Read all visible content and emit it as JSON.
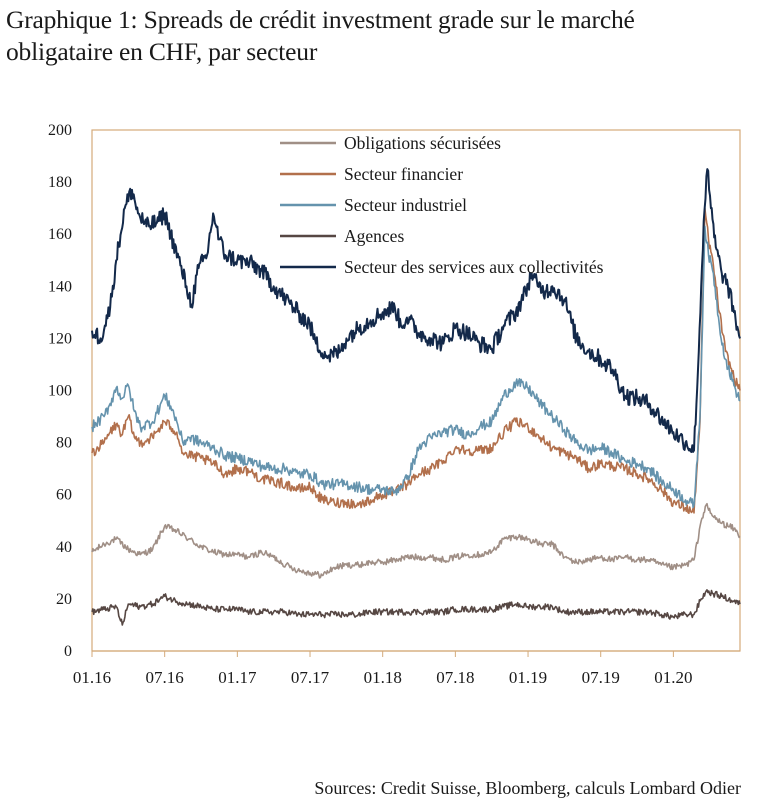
{
  "title": {
    "line1": "Graphique 1: Spreads de crédit investment grade sur le marché",
    "line2": "obligataire en CHF, par secteur"
  },
  "source": "Sources: Credit Suisse, Bloomberg, calculs Lombard Odier",
  "chart_data": {
    "type": "line",
    "title": "Graphique 1: Spreads de crédit investment grade sur le marché obligataire en CHF, par secteur",
    "xlabel": "",
    "ylabel": "",
    "ylim": [
      0,
      200
    ],
    "yticks": [
      0,
      20,
      40,
      60,
      80,
      100,
      120,
      140,
      160,
      180,
      200
    ],
    "xlim": [
      0,
      53.5
    ],
    "x_unit": "months since 01.16",
    "xticks": [
      {
        "x": 0,
        "label": "01.16"
      },
      {
        "x": 6,
        "label": "07.16"
      },
      {
        "x": 12,
        "label": "01.17"
      },
      {
        "x": 18,
        "label": "07.17"
      },
      {
        "x": 24,
        "label": "01.18"
      },
      {
        "x": 30,
        "label": "07.18"
      },
      {
        "x": 36,
        "label": "01.19"
      },
      {
        "x": 42,
        "label": "07.19"
      },
      {
        "x": 48,
        "label": "01.20"
      }
    ],
    "grid": false,
    "legend_position": "top",
    "series": [
      {
        "name": "Obligations sécurisées",
        "color": "#a08f86",
        "points": [
          [
            0,
            38
          ],
          [
            1,
            41
          ],
          [
            2,
            43
          ],
          [
            3,
            39
          ],
          [
            4,
            37
          ],
          [
            5,
            39
          ],
          [
            6,
            48
          ],
          [
            7,
            46
          ],
          [
            8,
            43
          ],
          [
            9,
            40
          ],
          [
            10,
            38
          ],
          [
            11,
            37
          ],
          [
            12,
            37
          ],
          [
            13,
            36
          ],
          [
            14,
            38
          ],
          [
            15,
            36
          ],
          [
            16,
            33
          ],
          [
            17,
            31
          ],
          [
            18,
            30
          ],
          [
            19,
            29
          ],
          [
            20,
            32
          ],
          [
            21,
            33
          ],
          [
            22,
            33
          ],
          [
            23,
            34
          ],
          [
            24,
            34
          ],
          [
            25,
            35
          ],
          [
            26,
            36
          ],
          [
            27,
            36
          ],
          [
            28,
            36
          ],
          [
            29,
            35
          ],
          [
            30,
            36
          ],
          [
            31,
            37
          ],
          [
            32,
            37
          ],
          [
            33,
            38
          ],
          [
            34,
            43
          ],
          [
            35,
            44
          ],
          [
            36,
            43
          ],
          [
            37,
            41
          ],
          [
            38,
            41
          ],
          [
            39,
            36
          ],
          [
            40,
            34
          ],
          [
            41,
            35
          ],
          [
            42,
            36
          ],
          [
            43,
            35
          ],
          [
            44,
            36
          ],
          [
            45,
            35
          ],
          [
            46,
            35
          ],
          [
            47,
            33
          ],
          [
            48,
            32
          ],
          [
            49,
            33
          ],
          [
            49.7,
            35
          ],
          [
            50.3,
            50
          ],
          [
            50.7,
            56
          ],
          [
            51.2,
            52
          ],
          [
            52,
            49
          ],
          [
            53,
            47
          ],
          [
            53.5,
            44
          ]
        ]
      },
      {
        "name": "Secteur financier",
        "color": "#b2704c",
        "points": [
          [
            0,
            76
          ],
          [
            1,
            80
          ],
          [
            1.5,
            84
          ],
          [
            2,
            87
          ],
          [
            2.5,
            83
          ],
          [
            3,
            90
          ],
          [
            3.5,
            82
          ],
          [
            4,
            80
          ],
          [
            5,
            82
          ],
          [
            6,
            88
          ],
          [
            6.5,
            86
          ],
          [
            7,
            84
          ],
          [
            7.5,
            76
          ],
          [
            8,
            75
          ],
          [
            9,
            74
          ],
          [
            10,
            72
          ],
          [
            11,
            68
          ],
          [
            12,
            70
          ],
          [
            13,
            69
          ],
          [
            14,
            66
          ],
          [
            15,
            65
          ],
          [
            16,
            64
          ],
          [
            17,
            62
          ],
          [
            18,
            63
          ],
          [
            19,
            58
          ],
          [
            20,
            57
          ],
          [
            21,
            57
          ],
          [
            22,
            56
          ],
          [
            23,
            58
          ],
          [
            24,
            60
          ],
          [
            25,
            61
          ],
          [
            26,
            64
          ],
          [
            27,
            68
          ],
          [
            28,
            70
          ],
          [
            29,
            73
          ],
          [
            30,
            78
          ],
          [
            31,
            77
          ],
          [
            32,
            77
          ],
          [
            33,
            78
          ],
          [
            34,
            84
          ],
          [
            35,
            88
          ],
          [
            36,
            86
          ],
          [
            37,
            82
          ],
          [
            38,
            78
          ],
          [
            39,
            76
          ],
          [
            40,
            74
          ],
          [
            41,
            70
          ],
          [
            42,
            72
          ],
          [
            43,
            71
          ],
          [
            44,
            70
          ],
          [
            45,
            68
          ],
          [
            46,
            66
          ],
          [
            47,
            62
          ],
          [
            48,
            57
          ],
          [
            49,
            55
          ],
          [
            49.7,
            53
          ],
          [
            50.2,
            88
          ],
          [
            50.6,
            170
          ],
          [
            50.9,
            158
          ],
          [
            51.3,
            148
          ],
          [
            51.8,
            130
          ],
          [
            52.3,
            115
          ],
          [
            53,
            105
          ],
          [
            53.5,
            100
          ]
        ]
      },
      {
        "name": "Secteur industriel",
        "color": "#6593ad",
        "points": [
          [
            0,
            86
          ],
          [
            1,
            90
          ],
          [
            1.5,
            95
          ],
          [
            2,
            101
          ],
          [
            2.5,
            97
          ],
          [
            3,
            102
          ],
          [
            3.5,
            92
          ],
          [
            4,
            86
          ],
          [
            5,
            88
          ],
          [
            6,
            98
          ],
          [
            6.5,
            94
          ],
          [
            7,
            88
          ],
          [
            7.5,
            80
          ],
          [
            8,
            82
          ],
          [
            9,
            80
          ],
          [
            10,
            78
          ],
          [
            11,
            75
          ],
          [
            12,
            74
          ],
          [
            13,
            73
          ],
          [
            14,
            71
          ],
          [
            15,
            70
          ],
          [
            16,
            70
          ],
          [
            17,
            68
          ],
          [
            18,
            68
          ],
          [
            19,
            64
          ],
          [
            20,
            64
          ],
          [
            21,
            64
          ],
          [
            22,
            63
          ],
          [
            23,
            62
          ],
          [
            24,
            62
          ],
          [
            25,
            61
          ],
          [
            26,
            66
          ],
          [
            27,
            78
          ],
          [
            28,
            82
          ],
          [
            29,
            84
          ],
          [
            30,
            85
          ],
          [
            31,
            83
          ],
          [
            32,
            86
          ],
          [
            33,
            88
          ],
          [
            34,
            98
          ],
          [
            35,
            103
          ],
          [
            36,
            101
          ],
          [
            37,
            95
          ],
          [
            38,
            90
          ],
          [
            39,
            85
          ],
          [
            40,
            80
          ],
          [
            41,
            77
          ],
          [
            42,
            78
          ],
          [
            43,
            76
          ],
          [
            44,
            73
          ],
          [
            45,
            72
          ],
          [
            46,
            70
          ],
          [
            47,
            65
          ],
          [
            48,
            62
          ],
          [
            49,
            58
          ],
          [
            49.7,
            56
          ],
          [
            50.2,
            90
          ],
          [
            50.6,
            163
          ],
          [
            50.9,
            152
          ],
          [
            51.3,
            145
          ],
          [
            51.8,
            125
          ],
          [
            52.3,
            112
          ],
          [
            53,
            102
          ],
          [
            53.5,
            96
          ]
        ]
      },
      {
        "name": "Agences",
        "color": "#564743",
        "points": [
          [
            0,
            15
          ],
          [
            1,
            16
          ],
          [
            2,
            17
          ],
          [
            2.5,
            10
          ],
          [
            3,
            18
          ],
          [
            4,
            17
          ],
          [
            5,
            18
          ],
          [
            6,
            21
          ],
          [
            7,
            19
          ],
          [
            8,
            18
          ],
          [
            9,
            17
          ],
          [
            10,
            16
          ],
          [
            11,
            16
          ],
          [
            12,
            16
          ],
          [
            13,
            15
          ],
          [
            14,
            15
          ],
          [
            15,
            15
          ],
          [
            16,
            15
          ],
          [
            17,
            14
          ],
          [
            18,
            14
          ],
          [
            19,
            14
          ],
          [
            20,
            14
          ],
          [
            21,
            14
          ],
          [
            22,
            14
          ],
          [
            23,
            15
          ],
          [
            24,
            15
          ],
          [
            25,
            15
          ],
          [
            26,
            15
          ],
          [
            27,
            15
          ],
          [
            28,
            15
          ],
          [
            29,
            15
          ],
          [
            30,
            16
          ],
          [
            31,
            16
          ],
          [
            32,
            16
          ],
          [
            33,
            16
          ],
          [
            34,
            17
          ],
          [
            35,
            18
          ],
          [
            36,
            17
          ],
          [
            37,
            17
          ],
          [
            38,
            17
          ],
          [
            39,
            15
          ],
          [
            40,
            15
          ],
          [
            41,
            15
          ],
          [
            42,
            15
          ],
          [
            43,
            15
          ],
          [
            44,
            15
          ],
          [
            45,
            15
          ],
          [
            46,
            15
          ],
          [
            47,
            14
          ],
          [
            48,
            13
          ],
          [
            49,
            14
          ],
          [
            49.7,
            14
          ],
          [
            50.3,
            20
          ],
          [
            50.7,
            23
          ],
          [
            51.3,
            22
          ],
          [
            52,
            21
          ],
          [
            53,
            19
          ],
          [
            53.5,
            18
          ]
        ]
      },
      {
        "name": "Secteur des services aux collectivités",
        "color": "#13294a",
        "points": [
          [
            0,
            123
          ],
          [
            0.7,
            120
          ],
          [
            1.5,
            132
          ],
          [
            2,
            150
          ],
          [
            2.7,
            170
          ],
          [
            3.3,
            177
          ],
          [
            3.8,
            168
          ],
          [
            4.5,
            163
          ],
          [
            5.5,
            165
          ],
          [
            6,
            168
          ],
          [
            6.5,
            160
          ],
          [
            7.3,
            148
          ],
          [
            7.8,
            140
          ],
          [
            8.2,
            133
          ],
          [
            8.8,
            147
          ],
          [
            9.5,
            152
          ],
          [
            10,
            168
          ],
          [
            10.5,
            158
          ],
          [
            11,
            152
          ],
          [
            12,
            150
          ],
          [
            13,
            149
          ],
          [
            14,
            146
          ],
          [
            15,
            140
          ],
          [
            16,
            135
          ],
          [
            17,
            130
          ],
          [
            18,
            125
          ],
          [
            18.5,
            118
          ],
          [
            19.5,
            113
          ],
          [
            20.5,
            115
          ],
          [
            21,
            120
          ],
          [
            22,
            124
          ],
          [
            23,
            127
          ],
          [
            24,
            130
          ],
          [
            25,
            132
          ],
          [
            25.5,
            125
          ],
          [
            26,
            128
          ],
          [
            27,
            122
          ],
          [
            28,
            120
          ],
          [
            29,
            118
          ],
          [
            30,
            124
          ],
          [
            31,
            122
          ],
          [
            32,
            118
          ],
          [
            33,
            116
          ],
          [
            34,
            125
          ],
          [
            35,
            130
          ],
          [
            35.8,
            138
          ],
          [
            36.3,
            145
          ],
          [
            36.8,
            140
          ],
          [
            37.5,
            138
          ],
          [
            38,
            140
          ],
          [
            39,
            135
          ],
          [
            40,
            120
          ],
          [
            41,
            115
          ],
          [
            42,
            112
          ],
          [
            43,
            108
          ],
          [
            44,
            98
          ],
          [
            45,
            97
          ],
          [
            46,
            95
          ],
          [
            47,
            89
          ],
          [
            48,
            84
          ],
          [
            49,
            80
          ],
          [
            49.7,
            77
          ],
          [
            50.1,
            115
          ],
          [
            50.5,
            165
          ],
          [
            50.8,
            185
          ],
          [
            51.1,
            170
          ],
          [
            51.5,
            155
          ],
          [
            52,
            145
          ],
          [
            52.5,
            140
          ],
          [
            53,
            130
          ],
          [
            53.5,
            120
          ]
        ]
      }
    ]
  }
}
